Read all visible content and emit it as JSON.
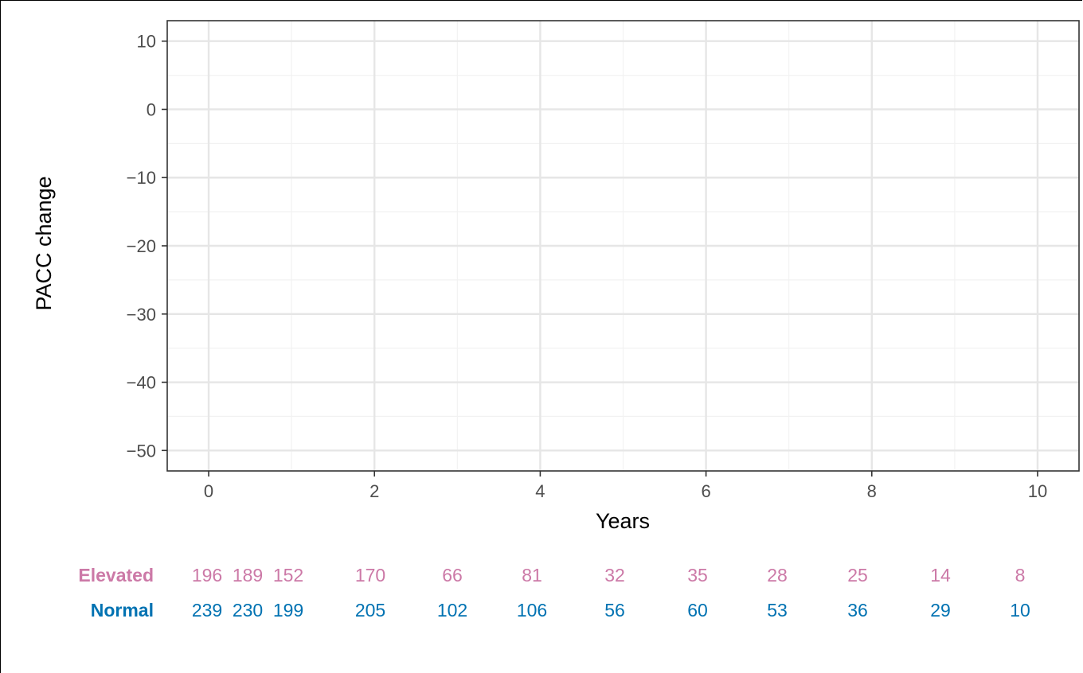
{
  "chart_data": {
    "type": "line",
    "title": "",
    "xlabel": "Years",
    "ylabel": "PACC change",
    "xlim": [
      -0.5,
      10.5
    ],
    "ylim": [
      -53,
      13
    ],
    "x_ticks": [
      0,
      2,
      4,
      6,
      8,
      10
    ],
    "y_ticks": [
      10,
      0,
      -10,
      -20,
      -30,
      -40,
      -50
    ],
    "x_tick_labels": [
      "0",
      "2",
      "4",
      "6",
      "8",
      "10"
    ],
    "y_tick_labels": [
      "10",
      "0",
      "−10",
      "−20",
      "−30",
      "−40",
      "−50"
    ],
    "grid": true,
    "series": [],
    "risk_table": {
      "rows": [
        {
          "name": "Elevated",
          "color": "#CC79A7",
          "values": [
            196,
            189,
            152,
            170,
            66,
            81,
            32,
            35,
            28,
            25,
            14,
            8
          ]
        },
        {
          "name": "Normal",
          "color": "#0072B2",
          "values": [
            239,
            230,
            199,
            205,
            102,
            106,
            56,
            60,
            53,
            36,
            29,
            10
          ]
        }
      ]
    }
  }
}
